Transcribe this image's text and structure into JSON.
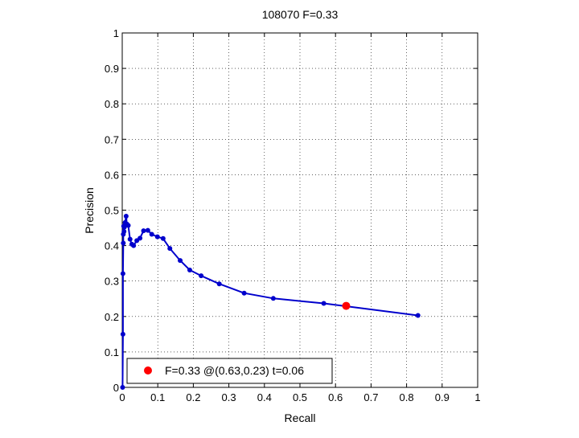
{
  "chart_data": {
    "type": "line",
    "title": "108070 F=0.33",
    "xlabel": "Recall",
    "ylabel": "Precision",
    "xlim": [
      0,
      1
    ],
    "ylim": [
      0,
      1
    ],
    "grid": true,
    "xticks": [
      0,
      0.1,
      0.2,
      0.3,
      0.4,
      0.5,
      0.6,
      0.7,
      0.8,
      0.9,
      1
    ],
    "yticks": [
      0,
      0.1,
      0.2,
      0.3,
      0.4,
      0.5,
      0.6,
      0.7,
      0.8,
      0.9,
      1
    ],
    "xtick_labels": [
      "0",
      "0.1",
      "0.2",
      "0.3",
      "0.4",
      "0.5",
      "0.6",
      "0.7",
      "0.8",
      "0.9",
      "1"
    ],
    "ytick_labels": [
      "0",
      "0.1",
      "0.2",
      "0.3",
      "0.4",
      "0.5",
      "0.6",
      "0.7",
      "0.8",
      "0.9",
      "1"
    ],
    "series": [
      {
        "color": "#0000cc",
        "points": [
          [
            0.832,
            0.203
          ],
          [
            0.567,
            0.237
          ],
          [
            0.425,
            0.251
          ],
          [
            0.343,
            0.266
          ],
          [
            0.273,
            0.292
          ],
          [
            0.222,
            0.315
          ],
          [
            0.19,
            0.331
          ],
          [
            0.163,
            0.358
          ],
          [
            0.134,
            0.392
          ],
          [
            0.115,
            0.42
          ],
          [
            0.099,
            0.425
          ],
          [
            0.083,
            0.432
          ],
          [
            0.072,
            0.443
          ],
          [
            0.06,
            0.442
          ],
          [
            0.05,
            0.421
          ],
          [
            0.041,
            0.414
          ],
          [
            0.032,
            0.4
          ],
          [
            0.027,
            0.404
          ],
          [
            0.022,
            0.418
          ],
          [
            0.017,
            0.457
          ],
          [
            0.013,
            0.461
          ],
          [
            0.011,
            0.483
          ],
          [
            0.008,
            0.465
          ],
          [
            0.006,
            0.452
          ],
          [
            0.005,
            0.44
          ],
          [
            0.004,
            0.455
          ],
          [
            0.003,
            0.432
          ],
          [
            0.003,
            0.407
          ],
          [
            0.002,
            0.321
          ],
          [
            0.002,
            0.15
          ],
          [
            0.001,
            0.0
          ]
        ]
      }
    ],
    "highlight": {
      "recall": 0.63,
      "precision": 0.23,
      "color": "#ff0000"
    },
    "legend": {
      "position": "bottom-left",
      "label": "F=0.33 @(0.63,0.23) t=0.06"
    }
  }
}
